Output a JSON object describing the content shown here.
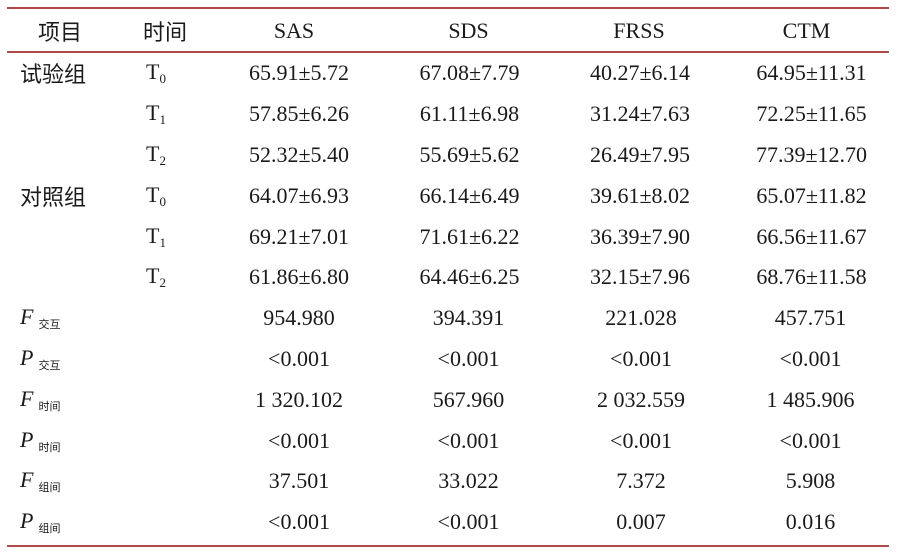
{
  "headers": [
    "项目",
    "时间",
    "SAS",
    "SDS",
    "FRSS",
    "CTM"
  ],
  "groups": [
    {
      "name": "试验组",
      "rows": [
        {
          "time": "T",
          "time_sub": "0",
          "values": [
            "65.91±5.72",
            "67.08±7.79",
            "40.27±6.14",
            "64.95±11.31"
          ]
        },
        {
          "time": "T",
          "time_sub": "1",
          "values": [
            "57.85±6.26",
            "61.11±6.98",
            "31.24±7.63",
            "72.25±11.65"
          ]
        },
        {
          "time": "T",
          "time_sub": "2",
          "values": [
            "52.32±5.40",
            "55.69±5.62",
            "26.49±7.95",
            "77.39±12.70"
          ]
        }
      ]
    },
    {
      "name": "对照组",
      "rows": [
        {
          "time": "T",
          "time_sub": "0",
          "values": [
            "64.07±6.93",
            "66.14±6.49",
            "39.61±8.02",
            "65.07±11.82"
          ]
        },
        {
          "time": "T",
          "time_sub": "1",
          "values": [
            "69.21±7.01",
            "71.61±6.22",
            "36.39±7.90",
            "66.56±11.67"
          ]
        },
        {
          "time": "T",
          "time_sub": "2",
          "values": [
            "61.86±6.80",
            "64.46±6.25",
            "32.15±7.96",
            "68.76±11.58"
          ]
        }
      ]
    }
  ],
  "stats": [
    {
      "symbol": "F",
      "sub": "交互",
      "values": [
        "954.980",
        "394.391",
        "221.028",
        "457.751"
      ]
    },
    {
      "symbol": "P",
      "sub": "交互",
      "values": [
        "<0.001",
        "<0.001",
        "<0.001",
        "<0.001"
      ]
    },
    {
      "symbol": "F",
      "sub": "时间",
      "values": [
        "1 320.102",
        "567.960",
        "2 032.559",
        "1 485.906"
      ]
    },
    {
      "symbol": "P",
      "sub": "时间",
      "values": [
        "<0.001",
        "<0.001",
        "<0.001",
        "<0.001"
      ]
    },
    {
      "symbol": "F",
      "sub": "组间",
      "values": [
        "37.501",
        "33.022",
        "7.372",
        "5.908"
      ]
    },
    {
      "symbol": "P",
      "sub": "组间",
      "values": [
        "<0.001",
        "<0.001",
        "0.007",
        "0.016"
      ]
    }
  ]
}
